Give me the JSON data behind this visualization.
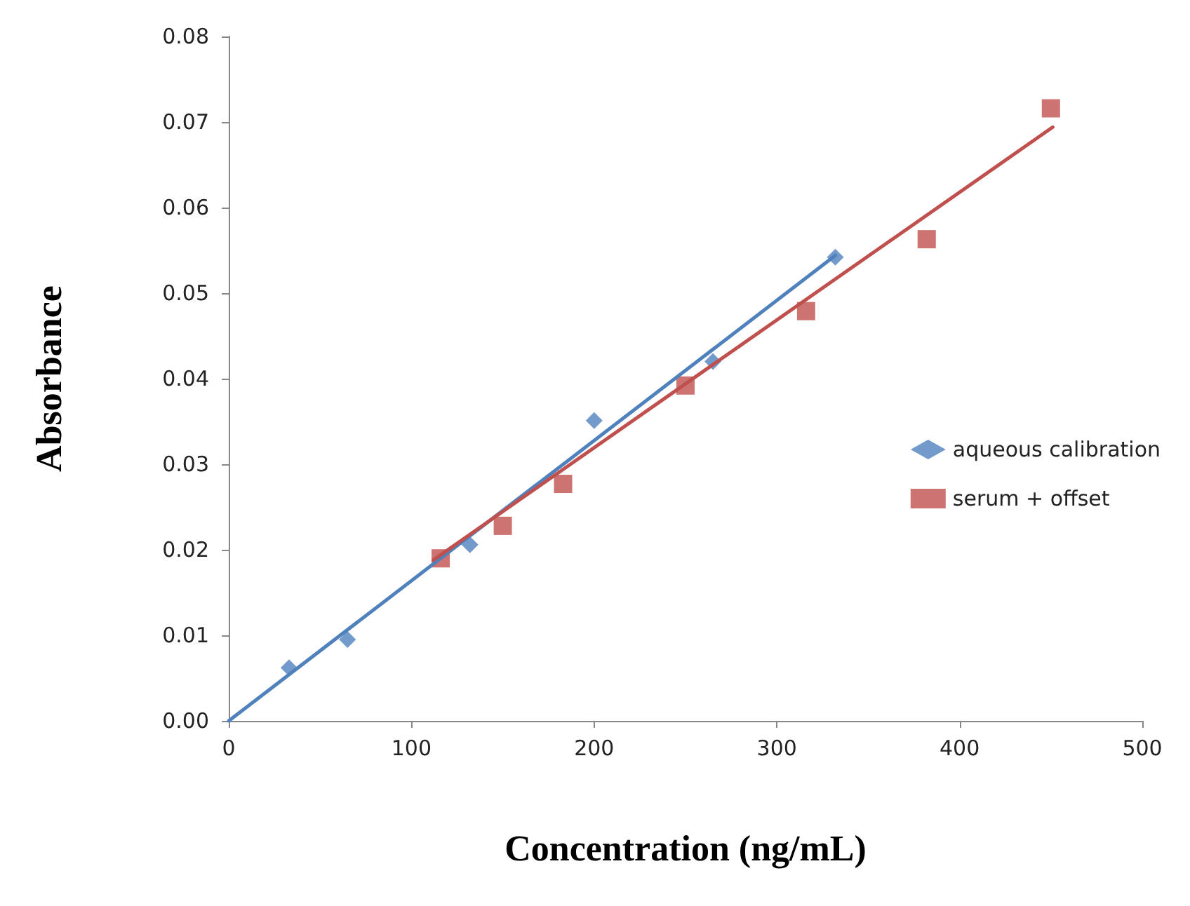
{
  "chart_data": {
    "type": "scatter",
    "xlabel": "Concentration (ng/mL)",
    "ylabel": "Absorbance",
    "xlim": [
      0,
      500
    ],
    "xticks": [
      0,
      100,
      200,
      300,
      400,
      500
    ],
    "ylim": [
      0,
      0.08
    ],
    "yticks": [
      {
        "value": 0,
        "label": "0.00"
      },
      {
        "value": 0.01,
        "label": "0.01"
      },
      {
        "value": 0.02,
        "label": "0.02"
      },
      {
        "value": 0.03,
        "label": "0.03"
      },
      {
        "value": 0.04,
        "label": "0.04"
      },
      {
        "value": 0.05,
        "label": "0.05"
      },
      {
        "value": 0.06,
        "label": "0.06"
      },
      {
        "value": 0.07,
        "label": "0.07"
      },
      {
        "value": 0.08,
        "label": "0.08"
      }
    ],
    "grid": false,
    "legend": "right",
    "series": [
      {
        "name": "aqueous calibration",
        "color": "#4f81bd",
        "marker": "diamond",
        "x": [
          33,
          65,
          132,
          200,
          265,
          332
        ],
        "values": [
          0.0062,
          0.0095,
          0.0206,
          0.0351,
          0.042,
          0.0542
        ]
      },
      {
        "name": "serum + offset",
        "color": "#c0504d",
        "marker": "square",
        "x": [
          116,
          150,
          183,
          250,
          316,
          382,
          450
        ],
        "values": [
          0.019,
          0.0228,
          0.0277,
          0.0392,
          0.0479,
          0.0563,
          0.0716
        ]
      },
      {
        "type": "line",
        "color": "#4f81bd",
        "marker": "none",
        "line_style": "solid",
        "x": [
          0,
          332
        ],
        "values": [
          0,
          0.0544
        ]
      },
      {
        "type": "line",
        "color": "#c0504d",
        "marker": "none",
        "line_style": "solid",
        "x": [
          112,
          451
        ],
        "values": [
          0.0188,
          0.0694
        ]
      }
    ]
  }
}
